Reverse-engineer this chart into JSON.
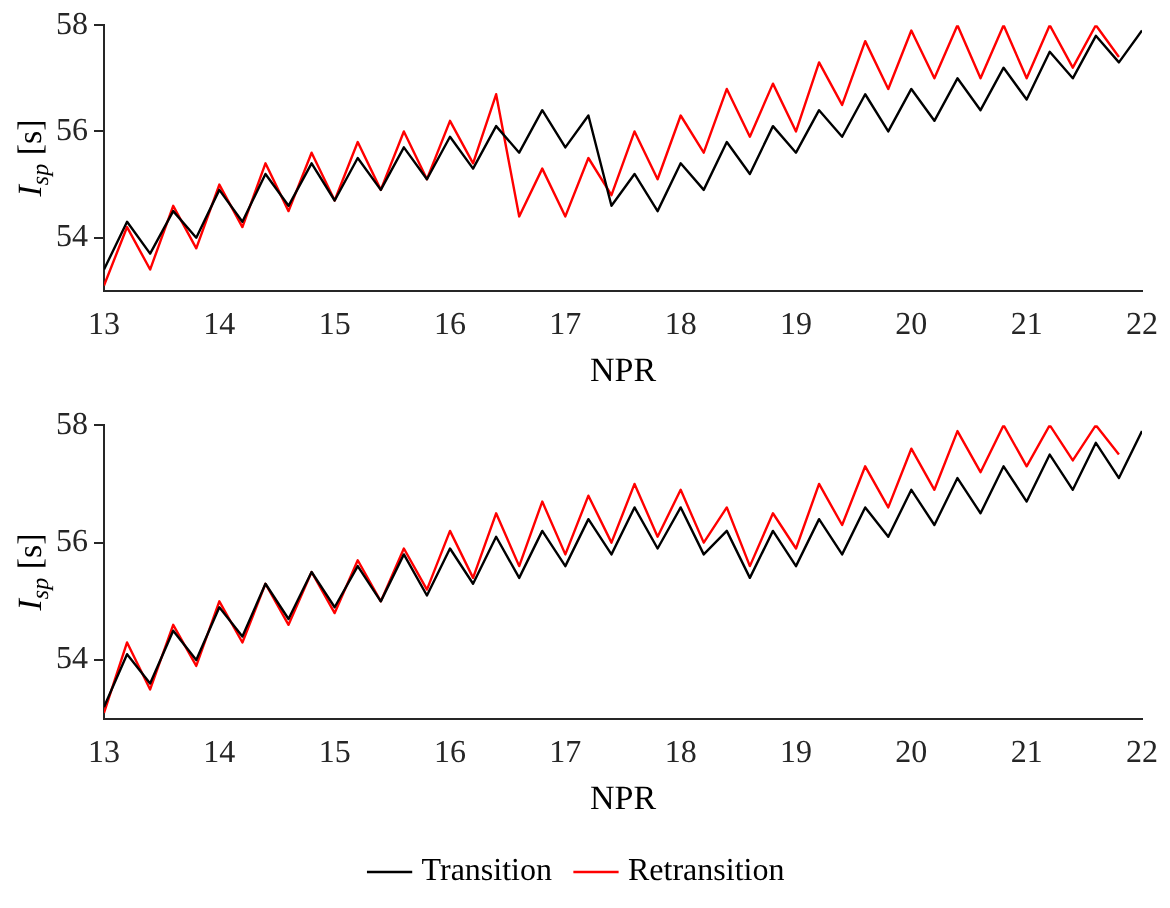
{
  "chart_data": [
    {
      "type": "line",
      "xlabel": "NPR",
      "ylabel": "I$_{sp}$ [s]",
      "xlim": [
        13,
        22
      ],
      "xticks": [
        13,
        14,
        15,
        16,
        17,
        18,
        19,
        20,
        21,
        22
      ],
      "ylim": [
        53,
        58
      ],
      "yticks": [
        54,
        56,
        58
      ],
      "grid": false,
      "legend": false,
      "marker": "none",
      "line_style": "solid",
      "series": [
        {
          "color": "#000000",
          "x": [
            13,
            13.2,
            13.4,
            13.6,
            13.8,
            14,
            14.2,
            14.4,
            14.6,
            14.8,
            15,
            15.2,
            15.4,
            15.6,
            15.8,
            16,
            16.2,
            16.4,
            16.6,
            16.8,
            17,
            17.2,
            17.4,
            17.6,
            17.8,
            18,
            18.2,
            18.4,
            18.6,
            18.8,
            19,
            19.2,
            19.4,
            19.6,
            19.8,
            20,
            20.2,
            20.4,
            20.6,
            20.8,
            21,
            21.2,
            21.4,
            21.6,
            21.8,
            22
          ],
          "values": [
            53.4,
            54.3,
            53.7,
            54.5,
            54.0,
            54.9,
            54.3,
            55.2,
            54.6,
            55.4,
            54.7,
            55.5,
            54.9,
            55.7,
            55.1,
            55.9,
            55.3,
            56.1,
            55.6,
            56.4,
            55.7,
            56.3,
            54.6,
            55.2,
            54.5,
            55.4,
            54.9,
            55.8,
            55.2,
            56.1,
            55.6,
            56.4,
            55.9,
            56.7,
            56.0,
            56.8,
            56.2,
            57.0,
            56.4,
            57.2,
            56.6,
            57.5,
            57.0,
            57.8,
            57.3,
            57.9
          ]
        },
        {
          "color": "#ff0000",
          "x": [
            13,
            13.2,
            13.4,
            13.6,
            13.8,
            14,
            14.2,
            14.4,
            14.6,
            14.8,
            15,
            15.2,
            15.4,
            15.6,
            15.8,
            16,
            16.2,
            16.4,
            16.6,
            16.8,
            17,
            17.2,
            17.4,
            17.6,
            17.8,
            18,
            18.2,
            18.4,
            18.6,
            18.8,
            19,
            19.2,
            19.4,
            19.6,
            19.8,
            20,
            20.2,
            20.4,
            20.6,
            20.8,
            21,
            21.2,
            21.4,
            21.6,
            21.8
          ],
          "values": [
            53.1,
            54.2,
            53.4,
            54.6,
            53.8,
            55.0,
            54.2,
            55.4,
            54.5,
            55.6,
            54.7,
            55.8,
            54.9,
            56.0,
            55.1,
            56.2,
            55.4,
            56.7,
            54.4,
            55.3,
            54.4,
            55.5,
            54.8,
            56.0,
            55.1,
            56.3,
            55.6,
            56.8,
            55.9,
            56.9,
            56.0,
            57.3,
            56.5,
            57.7,
            56.8,
            57.9,
            57.0,
            58.0,
            57.0,
            58.0,
            57.0,
            58.0,
            57.2,
            58.0,
            57.4
          ]
        }
      ]
    },
    {
      "type": "line",
      "xlabel": "NPR",
      "ylabel": "I$_{sp}$ [s]",
      "xlim": [
        13,
        22
      ],
      "xticks": [
        13,
        14,
        15,
        16,
        17,
        18,
        19,
        20,
        21,
        22
      ],
      "ylim": [
        53,
        58
      ],
      "yticks": [
        54,
        56,
        58
      ],
      "grid": false,
      "legend": "bottom",
      "marker": "none",
      "line_style": "solid",
      "series": [
        {
          "name": "Transition",
          "color": "#000000",
          "x": [
            13,
            13.2,
            13.4,
            13.6,
            13.8,
            14,
            14.2,
            14.4,
            14.6,
            14.8,
            15,
            15.2,
            15.4,
            15.6,
            15.8,
            16,
            16.2,
            16.4,
            16.6,
            16.8,
            17,
            17.2,
            17.4,
            17.6,
            17.8,
            18,
            18.2,
            18.4,
            18.6,
            18.8,
            19,
            19.2,
            19.4,
            19.6,
            19.8,
            20,
            20.2,
            20.4,
            20.6,
            20.8,
            21,
            21.2,
            21.4,
            21.6,
            21.8,
            22
          ],
          "values": [
            53.2,
            54.1,
            53.6,
            54.5,
            54.0,
            54.9,
            54.4,
            55.3,
            54.7,
            55.5,
            54.9,
            55.6,
            55.0,
            55.8,
            55.1,
            55.9,
            55.3,
            56.1,
            55.4,
            56.2,
            55.6,
            56.4,
            55.8,
            56.6,
            55.9,
            56.6,
            55.8,
            56.2,
            55.4,
            56.2,
            55.6,
            56.4,
            55.8,
            56.6,
            56.1,
            56.9,
            56.3,
            57.1,
            56.5,
            57.3,
            56.7,
            57.5,
            56.9,
            57.7,
            57.1,
            57.9
          ]
        },
        {
          "name": "Retransition",
          "color": "#ff0000",
          "x": [
            13,
            13.2,
            13.4,
            13.6,
            13.8,
            14,
            14.2,
            14.4,
            14.6,
            14.8,
            15,
            15.2,
            15.4,
            15.6,
            15.8,
            16,
            16.2,
            16.4,
            16.6,
            16.8,
            17,
            17.2,
            17.4,
            17.6,
            17.8,
            18,
            18.2,
            18.4,
            18.6,
            18.8,
            19,
            19.2,
            19.4,
            19.6,
            19.8,
            20,
            20.2,
            20.4,
            20.6,
            20.8,
            21,
            21.2,
            21.4,
            21.6,
            21.8
          ],
          "values": [
            53.1,
            54.3,
            53.5,
            54.6,
            53.9,
            55.0,
            54.3,
            55.3,
            54.6,
            55.5,
            54.8,
            55.7,
            55.0,
            55.9,
            55.2,
            56.2,
            55.4,
            56.5,
            55.6,
            56.7,
            55.8,
            56.8,
            56.0,
            57.0,
            56.1,
            56.9,
            56.0,
            56.6,
            55.6,
            56.5,
            55.9,
            57.0,
            56.3,
            57.3,
            56.6,
            57.6,
            56.9,
            57.9,
            57.2,
            58.0,
            57.3,
            58.0,
            57.4,
            58.0,
            57.5
          ]
        }
      ]
    }
  ]
}
